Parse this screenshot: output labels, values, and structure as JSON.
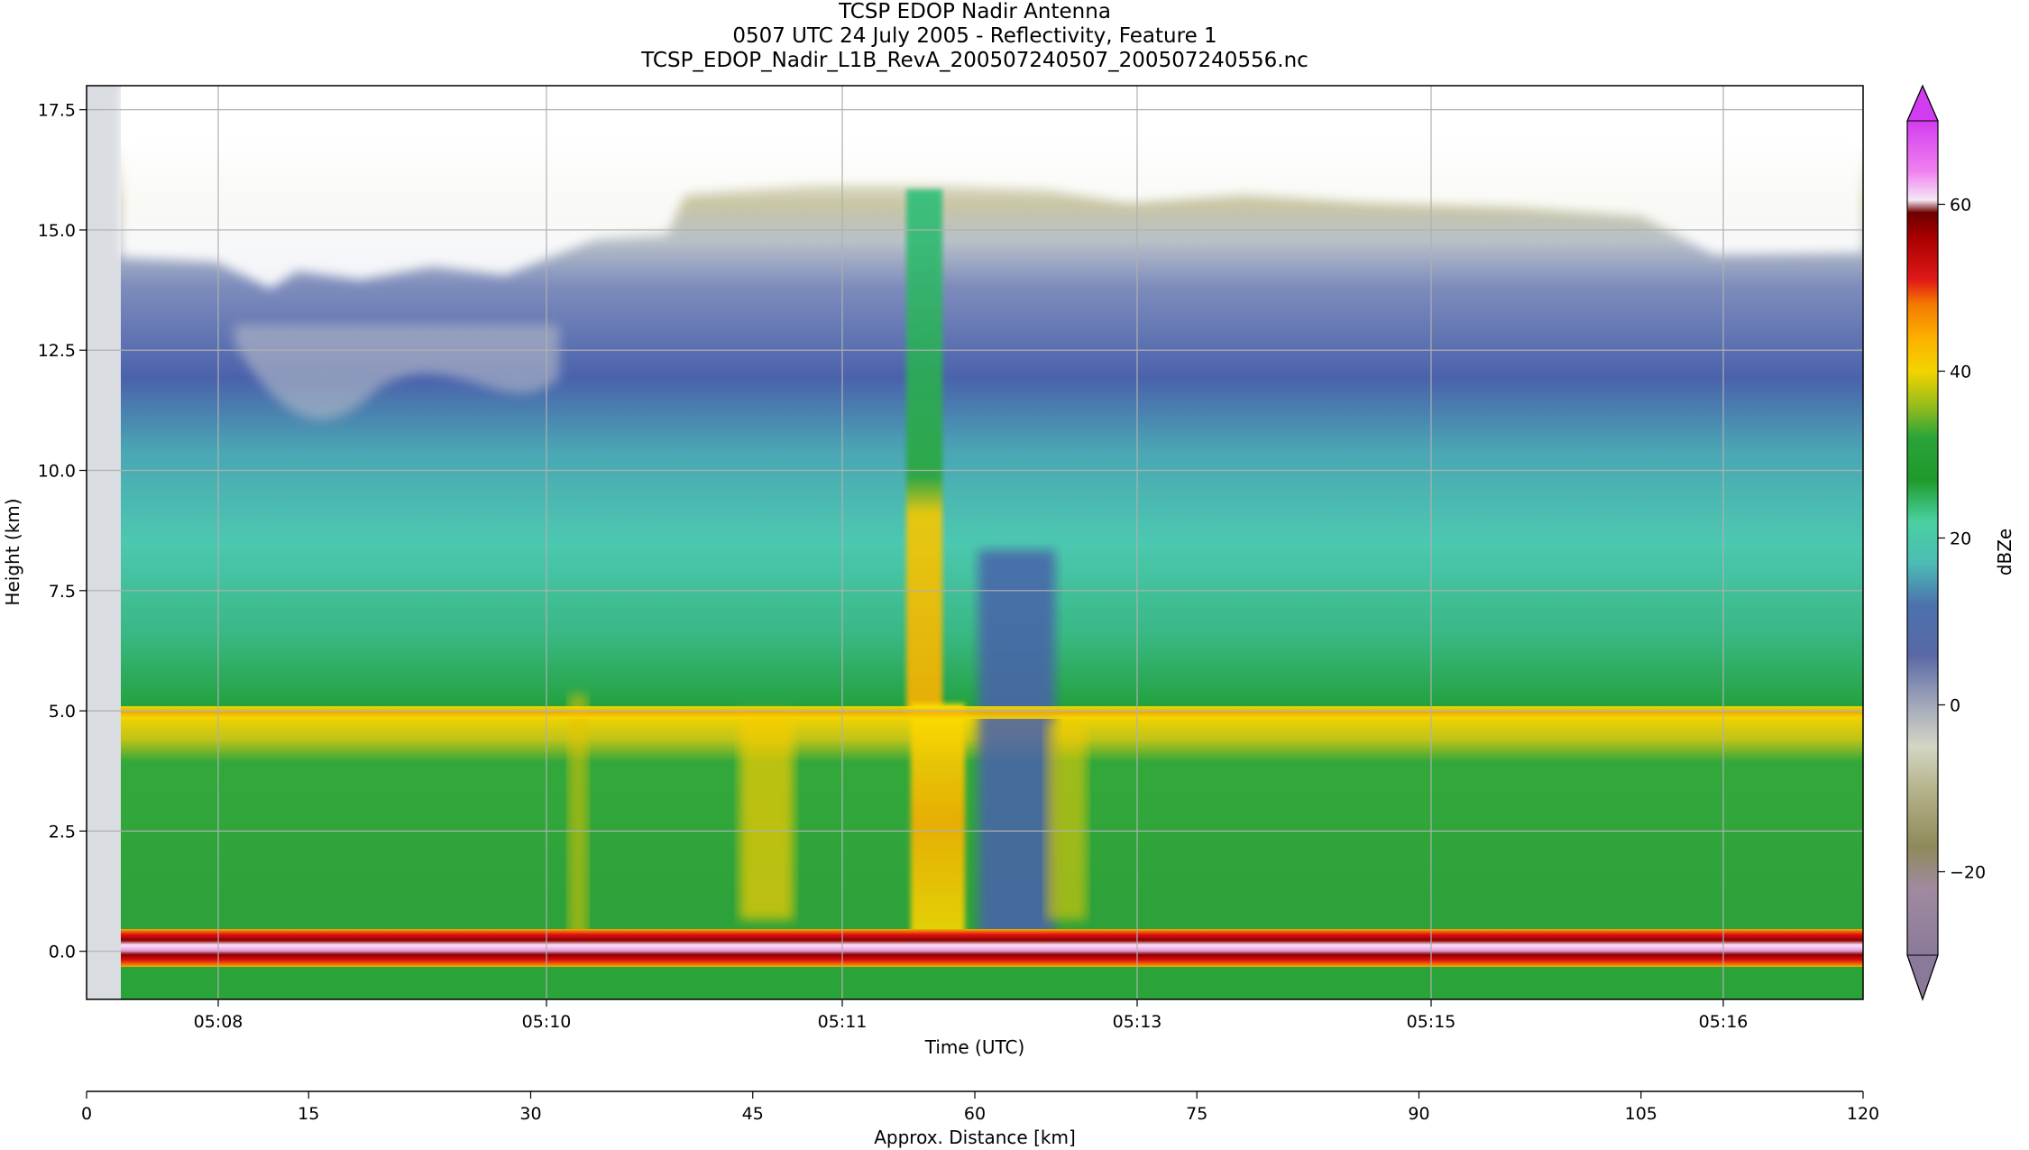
{
  "chart_data": {
    "type": "heatmap",
    "title": [
      "TCSP EDOP Nadir Antenna",
      "0507 UTC 24 July 2005 - Reflectivity, Feature 1",
      "TCSP_EDOP_Nadir_L1B_RevA_200507240507_200507240556.nc"
    ],
    "xlabel": "Time (UTC)",
    "ylabel": "Height (km)",
    "x2label": "Approx. Distance [km]",
    "colorbar_label": "dBZe",
    "x_ticks": [
      "05:08",
      "05:10",
      "05:11",
      "05:13",
      "05:15",
      "05:16"
    ],
    "y_ticks": [
      -0.0,
      2.5,
      5.0,
      7.5,
      10.0,
      12.5,
      15.0,
      17.5
    ],
    "y_tick_labels": [
      "0.0",
      "2.5",
      "5.0",
      "7.5",
      "10.0",
      "12.5",
      "15.0",
      "17.5"
    ],
    "x2_ticks": [
      0,
      15,
      30,
      45,
      60,
      75,
      90,
      105,
      120
    ],
    "colorbar_ticks": [
      -20,
      0,
      20,
      40,
      60
    ],
    "colorbar_tick_labels": [
      "−20",
      "0",
      "20",
      "40",
      "60"
    ],
    "ylim": [
      -1.0,
      18.0
    ],
    "x2lim": [
      0,
      120
    ],
    "clim": [
      -30,
      70
    ],
    "grid": true,
    "features": {
      "melting_layer_km": 5.0,
      "surface_return_km": 0.0,
      "echo_top_km": 15.0,
      "max_reflectivity_dBZ": 60
    }
  }
}
